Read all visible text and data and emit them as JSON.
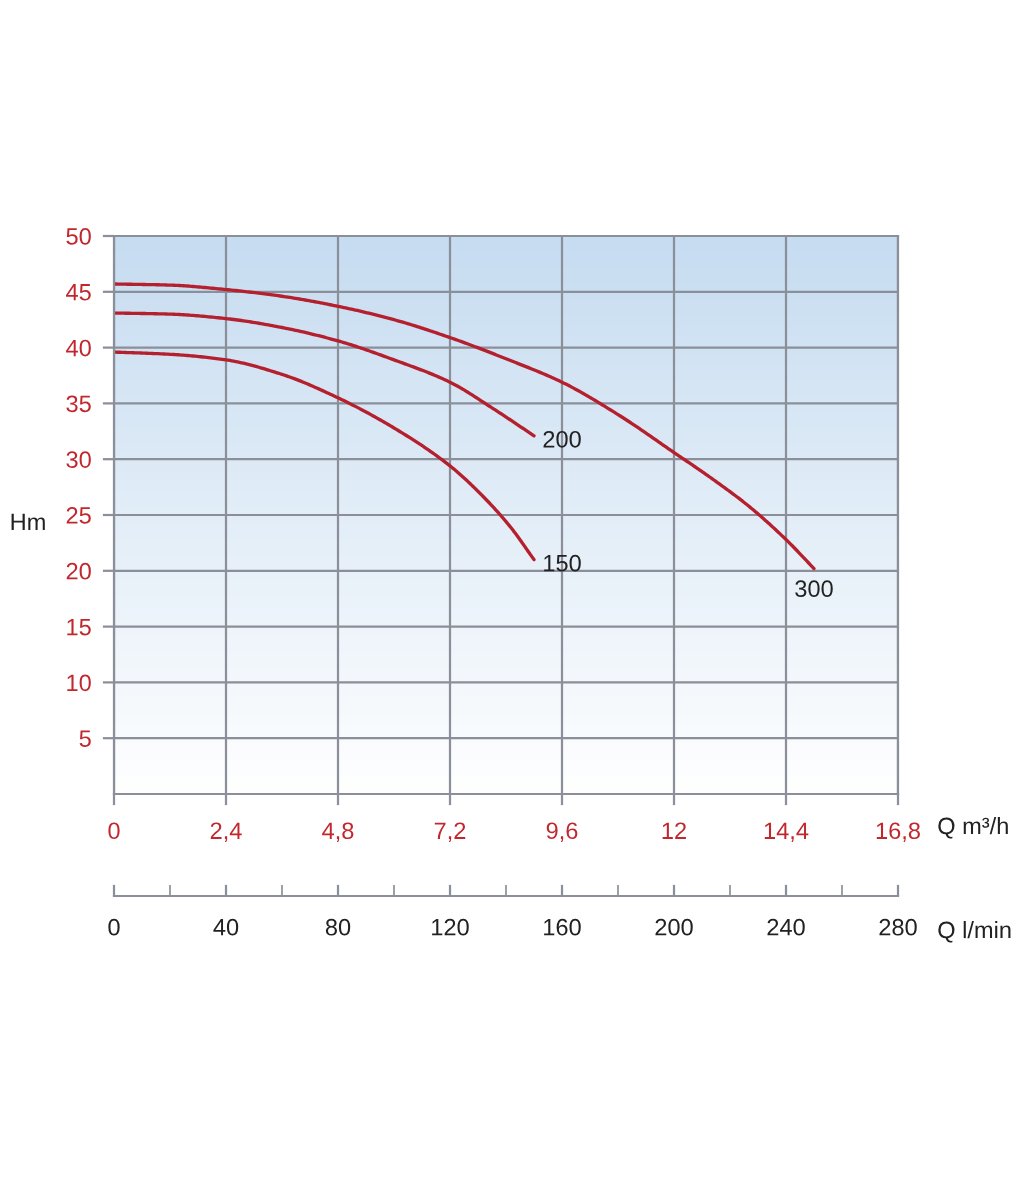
{
  "chart_data": {
    "type": "line",
    "xlabel": "Q m³/h",
    "ylabel": "Hm",
    "x2label": "Q l/min",
    "xlim": [
      0,
      16.8
    ],
    "xticks": [
      0,
      {
        "value": 2.4,
        "label": "2,4"
      },
      {
        "value": 4.8,
        "label": "4,8"
      },
      {
        "value": 7.2,
        "label": "7,2"
      },
      {
        "value": 9.6,
        "label": "9,6"
      },
      12,
      {
        "value": 14.4,
        "label": "14,4"
      },
      {
        "value": 16.8,
        "label": "16,8"
      }
    ],
    "ylim": [
      0,
      50
    ],
    "yticks": [
      5,
      10,
      15,
      20,
      25,
      30,
      35,
      40,
      45,
      50
    ],
    "x2lim": [
      0,
      280
    ],
    "x2ticks": [
      0,
      40,
      80,
      120,
      160,
      200,
      240,
      280
    ],
    "grid": true,
    "marker": "none",
    "line_style": "solid",
    "series": [
      {
        "name": "150",
        "color": "#b5202e",
        "x": [
          0,
          1.2,
          2.4,
          3.6,
          4.8,
          6.0,
          7.2,
          7.9,
          8.5,
          9.0
        ],
        "values": [
          39.6,
          39.4,
          38.9,
          37.6,
          35.5,
          32.8,
          29.4,
          26.7,
          23.9,
          21.0
        ]
      },
      {
        "name": "200",
        "color": "#b5202e",
        "x": [
          0,
          1.2,
          2.4,
          3.6,
          4.8,
          6.0,
          7.2,
          8.1,
          9.0
        ],
        "values": [
          43.1,
          43.0,
          42.6,
          41.8,
          40.6,
          38.9,
          36.9,
          34.6,
          32.1
        ]
      },
      {
        "name": "300",
        "color": "#b5202e",
        "x": [
          0,
          1.2,
          2.4,
          3.6,
          4.8,
          6.0,
          7.2,
          8.4,
          9.6,
          10.8,
          12.0,
          12.8,
          13.6,
          14.4,
          15.0
        ],
        "values": [
          45.7,
          45.6,
          45.2,
          44.6,
          43.7,
          42.5,
          40.9,
          39.0,
          36.9,
          34.0,
          30.6,
          28.3,
          25.8,
          22.8,
          20.2
        ]
      }
    ]
  }
}
